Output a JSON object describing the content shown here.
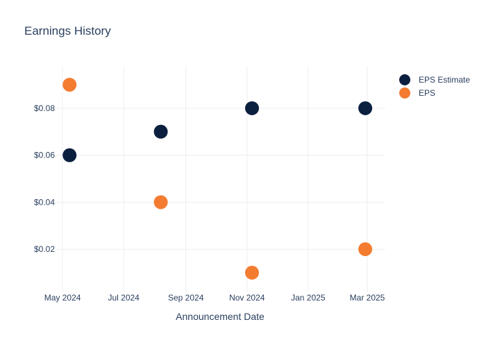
{
  "chart_data": {
    "type": "scatter",
    "title": "Earnings History",
    "xlabel": "Announcement Date",
    "ylabel": "",
    "x_ticks": [
      "May 2024",
      "Jul 2024",
      "Sep 2024",
      "Nov 2024",
      "Jan 2025",
      "Mar 2025"
    ],
    "x_tick_dates": [
      "2024-05-01",
      "2024-07-01",
      "2024-09-01",
      "2024-11-01",
      "2025-01-01",
      "2025-03-01"
    ],
    "xlim": [
      "2024-04-24",
      "2025-03-19"
    ],
    "y_ticks": [
      "$0.02",
      "$0.04",
      "$0.06",
      "$0.08"
    ],
    "y_tick_values": [
      0.02,
      0.04,
      0.06,
      0.08
    ],
    "ylim": [
      0.002,
      0.098
    ],
    "grid": true,
    "legend_position": "top-right",
    "series": [
      {
        "name": "EPS Estimate",
        "color": "#0b1f3f",
        "points": [
          {
            "x": "2024-05-08",
            "y": 0.06
          },
          {
            "x": "2024-08-07",
            "y": 0.07
          },
          {
            "x": "2024-11-06",
            "y": 0.08
          },
          {
            "x": "2025-02-27",
            "y": 0.08
          }
        ]
      },
      {
        "name": "EPS",
        "color": "#f47c30",
        "points": [
          {
            "x": "2024-05-08",
            "y": 0.09
          },
          {
            "x": "2024-08-07",
            "y": 0.04
          },
          {
            "x": "2024-11-06",
            "y": 0.01
          },
          {
            "x": "2025-02-27",
            "y": 0.02
          }
        ]
      }
    ]
  }
}
